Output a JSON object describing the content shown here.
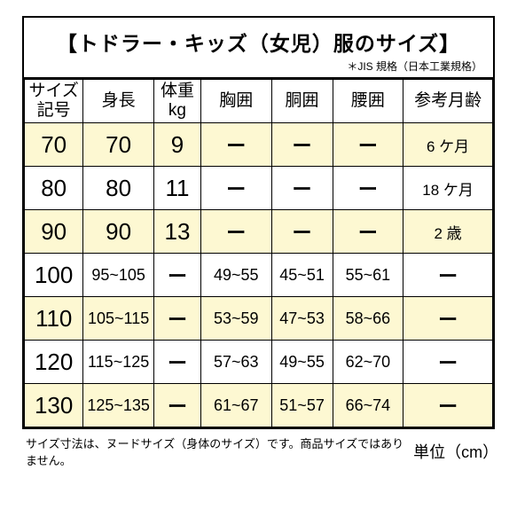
{
  "title": "【トドラー・キッズ（女児）服のサイズ】",
  "subtitle": "＊JIS 規格（日本工業規格）",
  "headers": {
    "size_label": "サイズ\n記号",
    "height": "身長",
    "weight": "体重\nkg",
    "chest": "胸囲",
    "waist": "胴囲",
    "hip": "腰囲",
    "age": "参考月齢"
  },
  "rows": [
    {
      "size": "70",
      "height": "70",
      "weight": "9",
      "chest": "ー",
      "waist": "ー",
      "hip": "ー",
      "age": "6 ケ月",
      "highlight": true
    },
    {
      "size": "80",
      "height": "80",
      "weight": "11",
      "chest": "ー",
      "waist": "ー",
      "hip": "ー",
      "age": "18 ケ月",
      "highlight": false
    },
    {
      "size": "90",
      "height": "90",
      "weight": "13",
      "chest": "ー",
      "waist": "ー",
      "hip": "ー",
      "age": "2 歳",
      "highlight": true
    },
    {
      "size": "100",
      "height": "95~105",
      "weight": "ー",
      "chest": "49~55",
      "waist": "45~51",
      "hip": "55~61",
      "age": "ー",
      "highlight": false
    },
    {
      "size": "110",
      "height": "105~115",
      "weight": "ー",
      "chest": "53~59",
      "waist": "47~53",
      "hip": "58~66",
      "age": "ー",
      "highlight": true
    },
    {
      "size": "120",
      "height": "115~125",
      "weight": "ー",
      "chest": "57~63",
      "waist": "49~55",
      "hip": "62~70",
      "age": "ー",
      "highlight": false
    },
    {
      "size": "130",
      "height": "125~135",
      "weight": "ー",
      "chest": "61~67",
      "waist": "51~57",
      "hip": "66~74",
      "age": "ー",
      "highlight": true
    }
  ],
  "footer": {
    "note": "サイズ寸法は、ヌードサイズ（身体のサイズ）です。商品サイズではありません。",
    "unit": "単位（cm）"
  },
  "colors": {
    "highlight_bg": "#fdf8d2",
    "border": "#000000",
    "background": "#ffffff",
    "text": "#000000"
  }
}
